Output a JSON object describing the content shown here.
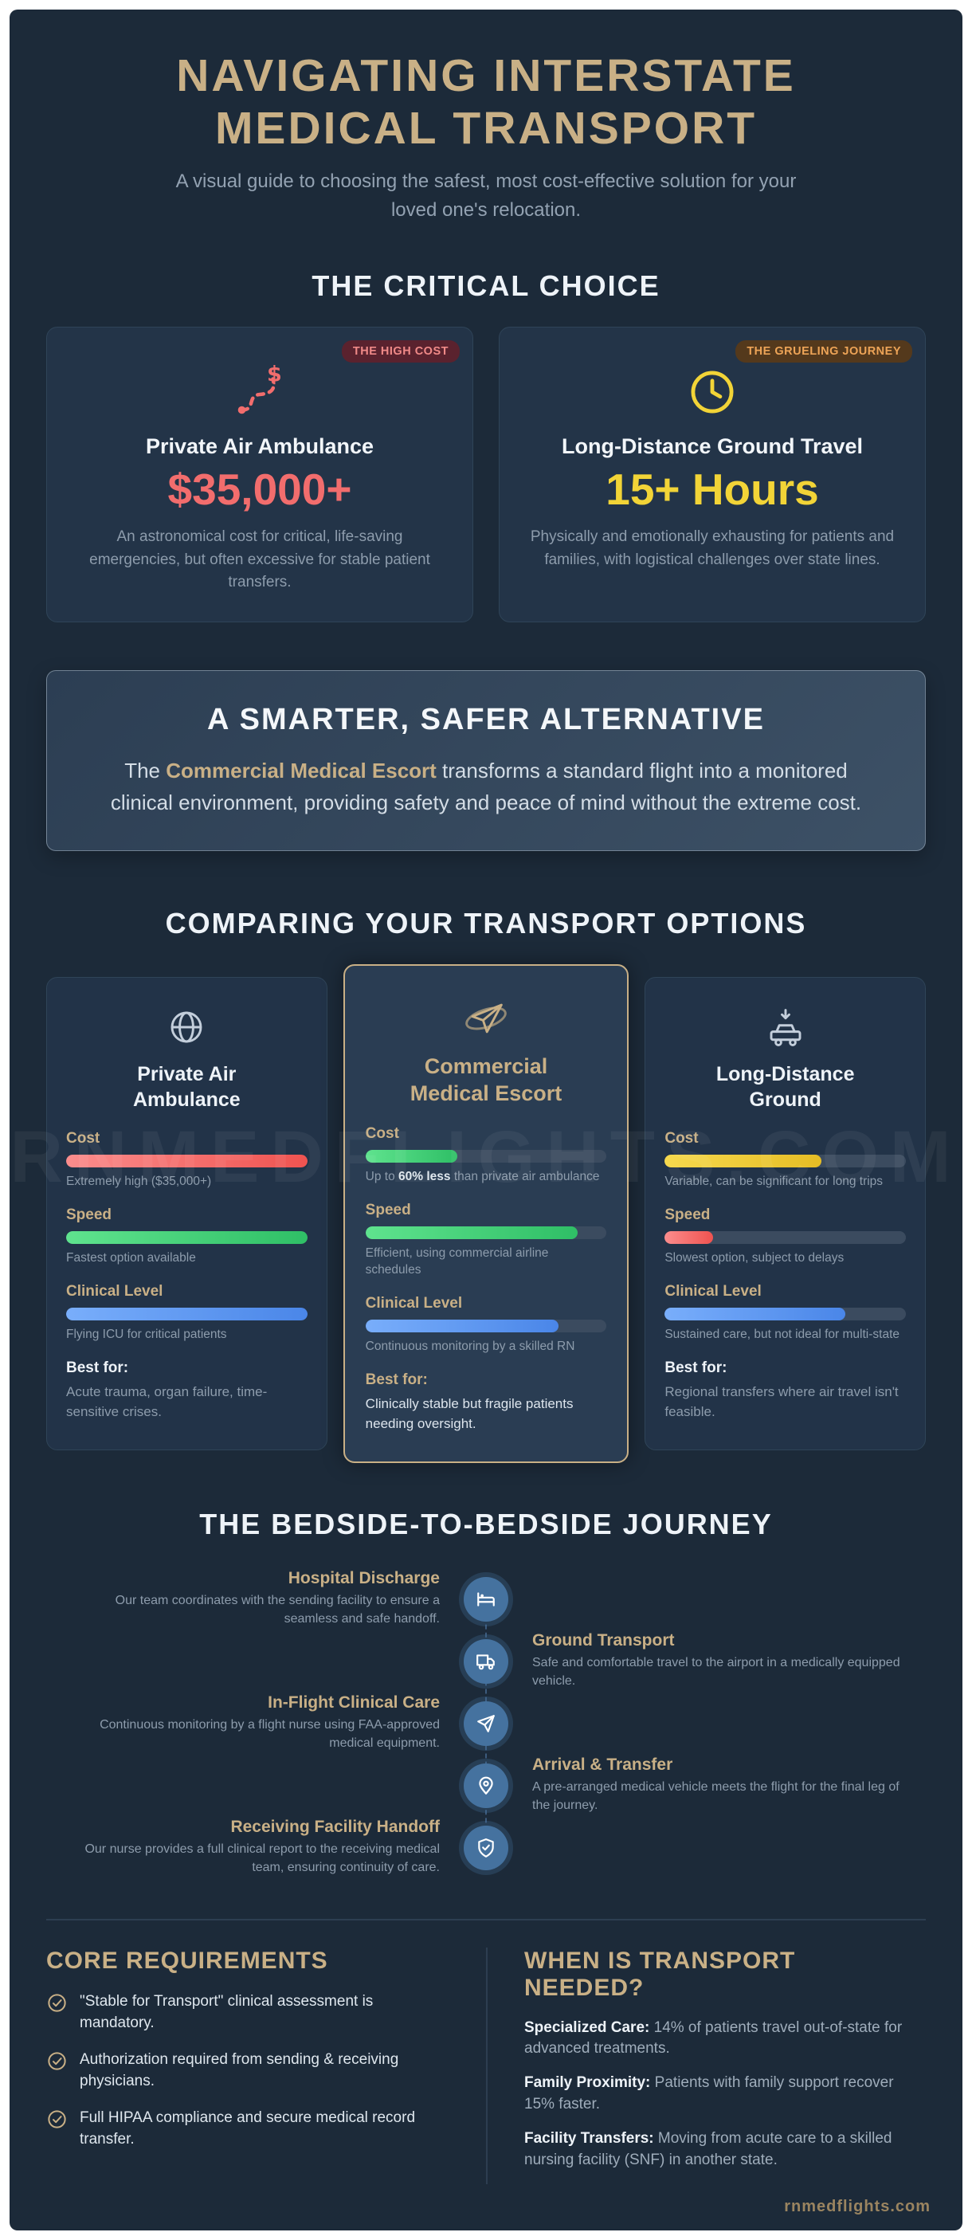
{
  "palette": {
    "background": "#1c2a39",
    "card": "#233448",
    "card_border": "#2f4458",
    "accent_gold": "#c9b086",
    "heading_white": "#eef3f8",
    "muted_text": "#8d9cac",
    "red": "#f26d6d",
    "yellow": "#f2d437",
    "green": "#3ecf72",
    "blue": "#5b93ea",
    "badge_red_bg": "#5a222e",
    "badge_red_text": "#f08a88",
    "badge_amber_bg": "#54391c",
    "badge_amber_text": "#eda457",
    "timeline_blue": "#45729f"
  },
  "header": {
    "title_line1": "NAVIGATING INTERSTATE",
    "title_line2": "MEDICAL TRANSPORT",
    "subtitle": "A visual guide to choosing the safest, most cost-effective solution for your loved one's relocation."
  },
  "critical_choice": {
    "heading": "THE CRITICAL CHOICE",
    "cards": [
      {
        "badge": "THE HIGH COST",
        "title": "Private Air Ambulance",
        "value": "$35,000+",
        "desc": "An astronomical cost for critical, life-saving emergencies, but often excessive for stable patient transfers."
      },
      {
        "badge": "THE GRUELING JOURNEY",
        "title": "Long-Distance Ground Travel",
        "value": "15+ Hours",
        "desc": "Physically and emotionally exhausting for patients and families, with logistical challenges over state lines."
      }
    ]
  },
  "alternative": {
    "heading": "A SMARTER, SAFER ALTERNATIVE",
    "body_prefix": "The ",
    "highlight": "Commercial Medical Escort",
    "body_suffix": " transforms a standard flight into a monitored clinical environment, providing safety and peace of mind without the extreme cost."
  },
  "comparison": {
    "heading": "COMPARING YOUR TRANSPORT OPTIONS",
    "cards": [
      {
        "title": "Private Air Ambulance",
        "metrics": [
          {
            "label": "Cost",
            "percent": 100,
            "color": "red",
            "note": "Extremely high ($35,000+)"
          },
          {
            "label": "Speed",
            "percent": 100,
            "color": "green",
            "note": "Fastest option available"
          },
          {
            "label": "Clinical Level",
            "percent": 100,
            "color": "blue",
            "note": "Flying ICU for critical patients"
          }
        ],
        "best_label": "Best for:",
        "best": "Acute trauma, organ failure, time-sensitive crises."
      },
      {
        "title": "Commercial Medical Escort",
        "metrics": [
          {
            "label": "Cost",
            "percent": 38,
            "color": "green",
            "note_pre": "Up to ",
            "note_bold": "60% less",
            "note_post": " than private air ambulance"
          },
          {
            "label": "Speed",
            "percent": 88,
            "color": "green",
            "note": "Efficient, using commercial airline schedules"
          },
          {
            "label": "Clinical Level",
            "percent": 80,
            "color": "blue",
            "note": "Continuous monitoring by a skilled RN"
          }
        ],
        "best_label": "Best for:",
        "best": "Clinically stable but fragile patients needing oversight."
      },
      {
        "title": "Long-Distance Ground",
        "metrics": [
          {
            "label": "Cost",
            "percent": 65,
            "color": "yellow",
            "note": "Variable, can be significant for long trips"
          },
          {
            "label": "Speed",
            "percent": 20,
            "color": "red",
            "note": "Slowest option, subject to delays"
          },
          {
            "label": "Clinical Level",
            "percent": 75,
            "color": "blue",
            "note": "Sustained care, but not ideal for multi-state"
          }
        ],
        "best_label": "Best for:",
        "best": "Regional transfers where air travel isn't feasible."
      }
    ]
  },
  "journey": {
    "heading": "THE BEDSIDE-TO-BEDSIDE JOURNEY",
    "steps": [
      {
        "icon": "bed-icon",
        "title": "Hospital Discharge",
        "desc": "Our team coordinates with the sending facility to ensure a seamless and safe handoff."
      },
      {
        "icon": "vehicle-icon",
        "title": "Ground Transport",
        "desc": "Safe and comfortable travel to the airport in a medically equipped vehicle."
      },
      {
        "icon": "plane-icon",
        "title": "In-Flight Clinical Care",
        "desc": "Continuous monitoring by a flight nurse using FAA-approved medical equipment."
      },
      {
        "icon": "pin-icon",
        "title": "Arrival & Transfer",
        "desc": "A pre-arranged medical vehicle meets the flight for the final leg of the journey."
      },
      {
        "icon": "shield-icon",
        "title": "Receiving Facility Handoff",
        "desc": "Our nurse provides a full clinical report to the receiving medical team, ensuring continuity of care."
      }
    ]
  },
  "requirements": {
    "heading": "CORE REQUIREMENTS",
    "items": [
      "\"Stable for Transport\" clinical assessment is mandatory.",
      "Authorization required from sending & receiving physicians.",
      "Full HIPAA compliance and secure medical record transfer."
    ]
  },
  "when_needed": {
    "heading": "WHEN IS TRANSPORT NEEDED?",
    "items": [
      {
        "lead": "Specialized Care:",
        "text": " 14% of patients travel out-of-state for advanced treatments."
      },
      {
        "lead": "Family Proximity:",
        "text": " Patients with family support recover 15% faster."
      },
      {
        "lead": "Facility Transfers:",
        "text": " Moving from acute care to a skilled nursing facility (SNF) in another state."
      }
    ]
  },
  "watermark": {
    "large": "RNMEDFLIGHTS.COM",
    "small": "rnmedflights.com"
  }
}
